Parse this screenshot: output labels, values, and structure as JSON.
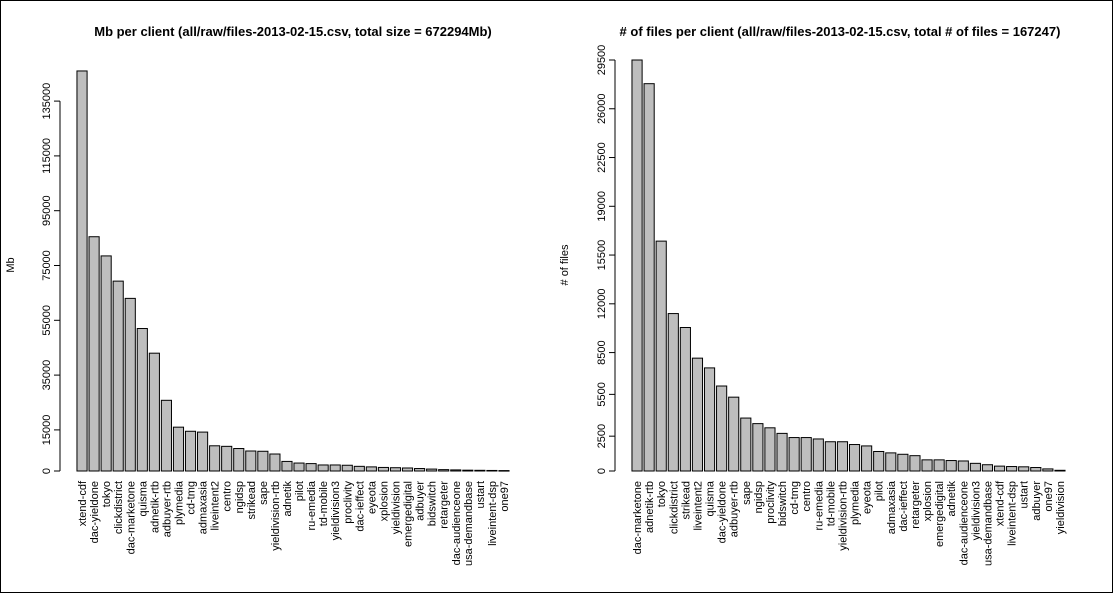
{
  "chart_data": [
    {
      "type": "bar",
      "title": "Mb per client (all/raw/files-2013-02-15.csv, total size = 672294Mb)",
      "ylabel": "Mb",
      "xlabel": "",
      "ylim": [
        0,
        150000
      ],
      "yticks": [
        0,
        15000,
        35000,
        55000,
        75000,
        95000,
        115000,
        135000
      ],
      "grid": false,
      "categories": [
        "xtend-cdf",
        "dac-yieldone",
        "tokyo",
        "clickdistrict",
        "dac-marketone",
        "quisma",
        "adnetik-rtb",
        "adbuyer-rtb",
        "plymedia",
        "cd-tmg",
        "admaxasia",
        "liveintent2",
        "centro",
        "ngidsp",
        "strikead",
        "sape",
        "yieldivision-rtb",
        "adnetik",
        "pilot",
        "ru-emedia",
        "td-mobile",
        "yieldivision3",
        "proclivity",
        "dac-ieffect",
        "eyeota",
        "xplosion",
        "yieldivision",
        "emergedigital",
        "adbuyer",
        "bidswitch",
        "retargeter",
        "dac-audienceone",
        "usa-demandbase",
        "ustart",
        "liveintent-dsp",
        "one97"
      ],
      "values": [
        146000,
        85500,
        78500,
        69300,
        63000,
        52000,
        43000,
        25800,
        16000,
        14500,
        14200,
        9200,
        9000,
        8200,
        7300,
        7200,
        6200,
        3500,
        2900,
        2700,
        2200,
        2200,
        2100,
        1700,
        1500,
        1300,
        1200,
        1100,
        900,
        700,
        500,
        400,
        300,
        250,
        200,
        150
      ]
    },
    {
      "type": "bar",
      "title": "# of files per client (all/raw/files-2013-02-15.csv, total # of files = 167247)",
      "ylabel": "# of files",
      "xlabel": "",
      "ylim": [
        0,
        29500
      ],
      "yticks": [
        0,
        2500,
        5500,
        8500,
        12000,
        15500,
        19000,
        22500,
        26000,
        29500
      ],
      "grid": false,
      "categories": [
        "dac-marketone",
        "adnetik-rtb",
        "tokyo",
        "clickdistrict",
        "strikead",
        "liveintent2",
        "quisma",
        "dac-yieldone",
        "adbuyer-rtb",
        "sape",
        "ngidsp",
        "proclivity",
        "bidswitch",
        "cd-tmg",
        "centro",
        "ru-emedia",
        "td-mobile",
        "yieldivision-rtb",
        "plymedia",
        "eyeota",
        "pilot",
        "admaxasia",
        "dac-ieffect",
        "retargeter",
        "xplosion",
        "emergedigital",
        "adnetik",
        "dac-audienceone",
        "yieldivision3",
        "usa-demandbase",
        "xtend-cdf",
        "liveintent-dsp",
        "ustart",
        "adbuyer",
        "one97",
        "yieldivision"
      ],
      "values": [
        29500,
        27800,
        16500,
        11300,
        10300,
        8100,
        7400,
        6100,
        5300,
        3800,
        3400,
        3100,
        2700,
        2400,
        2400,
        2300,
        2100,
        2100,
        1900,
        1800,
        1400,
        1300,
        1200,
        1100,
        800,
        800,
        750,
        720,
        550,
        450,
        350,
        320,
        300,
        250,
        150,
        50
      ]
    }
  ]
}
